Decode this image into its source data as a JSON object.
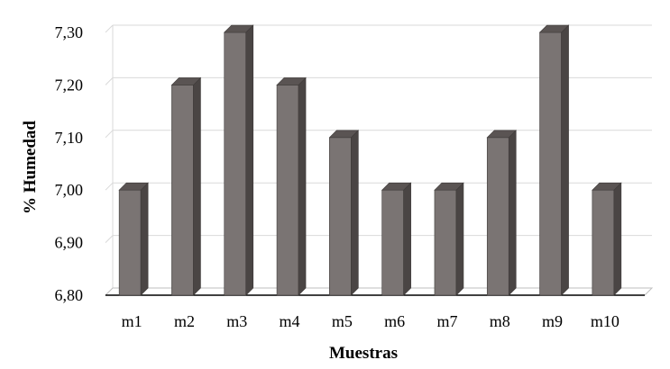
{
  "chart_data": {
    "type": "bar",
    "title": "",
    "xlabel": "Muestras",
    "ylabel": "% Humedad",
    "categories": [
      "m1",
      "m2",
      "m3",
      "m4",
      "m5",
      "m6",
      "m7",
      "m8",
      "m9",
      "m10"
    ],
    "values": [
      7.0,
      7.2,
      7.3,
      7.2,
      7.1,
      7.0,
      7.0,
      7.1,
      7.3,
      7.0
    ],
    "ylim": [
      6.8,
      7.3
    ],
    "yticks": [
      "6,80",
      "6,90",
      "7,00",
      "7,10",
      "7,20",
      "7,30"
    ],
    "grid": true,
    "legend": "none",
    "style": "3d",
    "colors": {
      "bar_front": "#7a7473",
      "bar_side": "#4a4544",
      "bar_top": "#5a5453",
      "gridline": "#d9d9d9",
      "floor": "#000000"
    }
  }
}
